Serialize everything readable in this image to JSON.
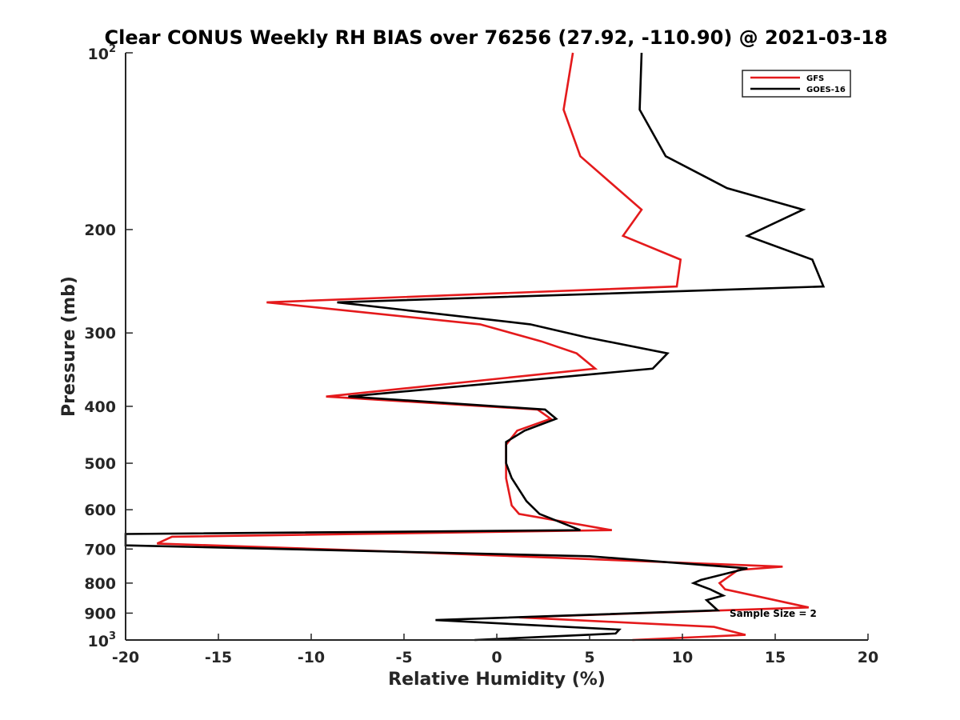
{
  "chart_data": {
    "type": "line",
    "title": "Clear CONUS Weekly RH BIAS over 76256 (27.92, -110.90) @ 2021-03-18",
    "xlabel": "Relative Humidity (%)",
    "ylabel": "Pressure (mb)",
    "xlim": [
      -20,
      20
    ],
    "ylim": [
      100,
      1000
    ],
    "yscale": "log",
    "y_reversed": true,
    "grid": false,
    "legend_position": "top-right",
    "x_ticks": [
      "-20",
      "-15",
      "-10",
      "-5",
      "0",
      "5",
      "10",
      "15",
      "20"
    ],
    "y_ticks": [
      {
        "value": 100,
        "label": "10",
        "sup": "2"
      },
      {
        "value": 200,
        "label": "200",
        "sup": ""
      },
      {
        "value": 300,
        "label": "300",
        "sup": ""
      },
      {
        "value": 400,
        "label": "400",
        "sup": ""
      },
      {
        "value": 500,
        "label": "500",
        "sup": ""
      },
      {
        "value": 600,
        "label": "600",
        "sup": ""
      },
      {
        "value": 700,
        "label": "700",
        "sup": ""
      },
      {
        "value": 800,
        "label": "800",
        "sup": ""
      },
      {
        "value": 900,
        "label": "900",
        "sup": ""
      },
      {
        "value": 1000,
        "label": "10",
        "sup": "3"
      }
    ],
    "series": [
      {
        "name": "GFS",
        "color": "#e41a1c",
        "points": [
          [
            4.1,
            100
          ],
          [
            3.6,
            125
          ],
          [
            4.5,
            150
          ],
          [
            7.8,
            185
          ],
          [
            6.8,
            205
          ],
          [
            9.9,
            225
          ],
          [
            9.7,
            250
          ],
          [
            -12.4,
            266
          ],
          [
            -0.9,
            290
          ],
          [
            2.4,
            310
          ],
          [
            4.3,
            325
          ],
          [
            5.3,
            345
          ],
          [
            -9.2,
            385
          ],
          [
            2.2,
            405
          ],
          [
            2.9,
            420
          ],
          [
            1.1,
            440
          ],
          [
            0.5,
            465
          ],
          [
            0.5,
            500
          ],
          [
            0.5,
            530
          ],
          [
            0.8,
            590
          ],
          [
            1.2,
            610
          ],
          [
            6.2,
            650
          ],
          [
            -17.5,
            667
          ],
          [
            -18.3,
            685
          ],
          [
            -5.0,
            708
          ],
          [
            15.4,
            750
          ],
          [
            13.0,
            760
          ],
          [
            12.0,
            800
          ],
          [
            12.3,
            820
          ],
          [
            14.6,
            850
          ],
          [
            16.8,
            880
          ],
          [
            1.2,
            915
          ],
          [
            11.7,
            950
          ],
          [
            13.4,
            980
          ],
          [
            7.3,
            1000
          ]
        ]
      },
      {
        "name": "GOES-16",
        "color": "#000000",
        "points": [
          [
            7.8,
            100
          ],
          [
            7.7,
            125
          ],
          [
            9.1,
            150
          ],
          [
            12.4,
            170
          ],
          [
            16.5,
            185
          ],
          [
            13.5,
            205
          ],
          [
            17.0,
            225
          ],
          [
            17.6,
            250
          ],
          [
            -8.6,
            266
          ],
          [
            1.8,
            290
          ],
          [
            4.8,
            305
          ],
          [
            9.2,
            325
          ],
          [
            8.4,
            345
          ],
          [
            -8.0,
            385
          ],
          [
            2.6,
            405
          ],
          [
            3.2,
            420
          ],
          [
            1.5,
            440
          ],
          [
            0.5,
            460
          ],
          [
            0.5,
            500
          ],
          [
            0.8,
            530
          ],
          [
            1.6,
            580
          ],
          [
            2.3,
            610
          ],
          [
            4.5,
            650
          ],
          [
            -20.0,
            660
          ],
          [
            -20.0,
            690
          ],
          [
            5.0,
            720
          ],
          [
            13.5,
            755
          ],
          [
            11.0,
            790
          ],
          [
            10.6,
            800
          ],
          [
            11.5,
            820
          ],
          [
            12.2,
            840
          ],
          [
            11.3,
            855
          ],
          [
            11.9,
            890
          ],
          [
            -3.3,
            925
          ],
          [
            6.6,
            960
          ],
          [
            6.4,
            975
          ],
          [
            -1.2,
            1000
          ]
        ]
      }
    ],
    "annotations": [
      "Sample Size = 2"
    ]
  }
}
